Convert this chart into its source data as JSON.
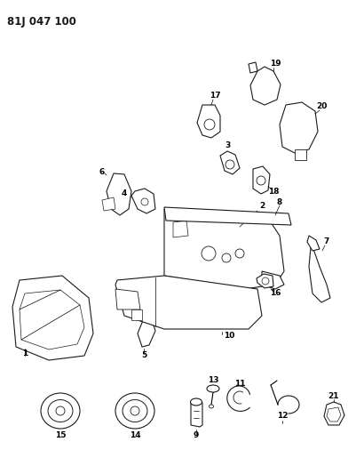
{
  "title": "81J 047 100",
  "bg_color": "#ffffff",
  "line_color": "#1a1a1a",
  "title_fontsize": 8.5,
  "fig_width": 4.02,
  "fig_height": 5.33,
  "dpi": 100
}
